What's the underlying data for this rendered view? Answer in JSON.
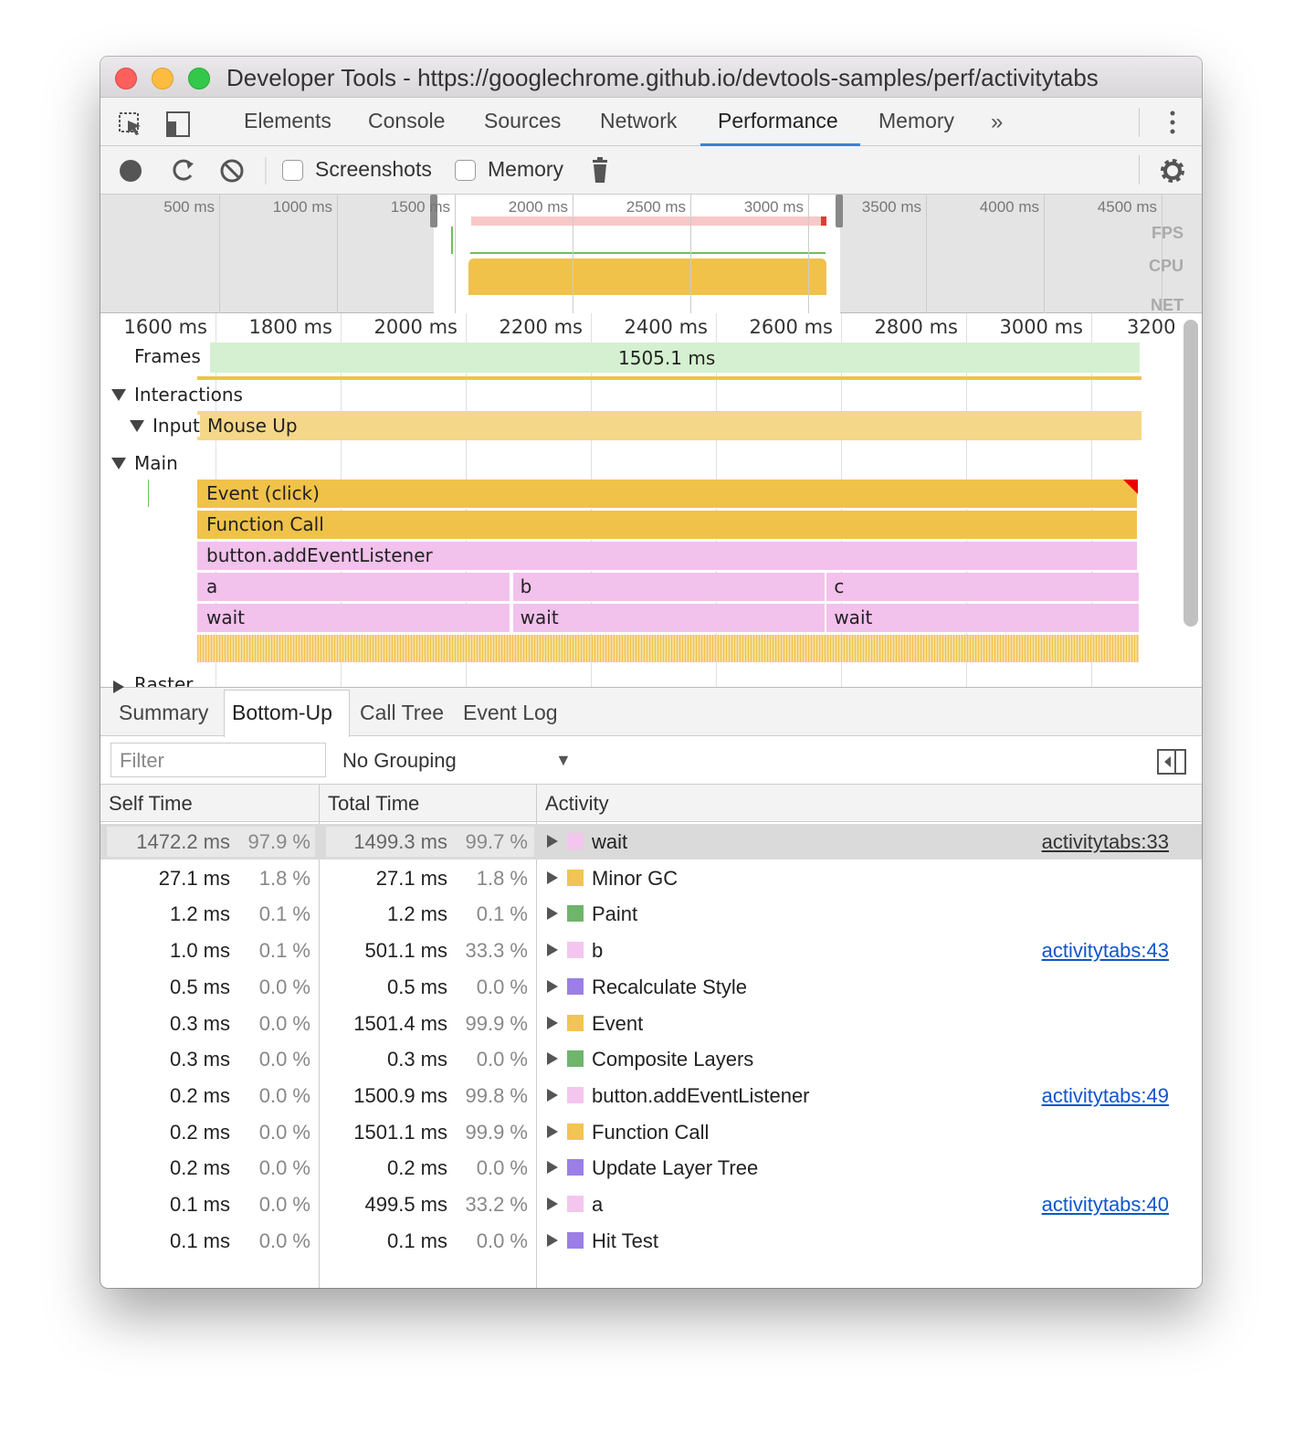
{
  "window": {
    "title": "Developer Tools - https://googlechrome.github.io/devtools-samples/perf/activitytabs"
  },
  "toolbar": {
    "tabs": [
      "Elements",
      "Console",
      "Sources",
      "Network",
      "Performance",
      "Memory"
    ],
    "active_tab": 4
  },
  "controls": {
    "checkboxes": [
      "Screenshots",
      "Memory"
    ]
  },
  "overview": {
    "ticks": [
      "500 ms",
      "1000 ms",
      "1500 ms",
      "2000 ms",
      "2500 ms",
      "3000 ms",
      "3500 ms",
      "4000 ms",
      "4500 ms"
    ],
    "tracks": [
      "FPS",
      "CPU",
      "NET"
    ]
  },
  "timeline": {
    "ticks": [
      "1600 ms",
      "1800 ms",
      "2000 ms",
      "2200 ms",
      "2400 ms",
      "2600 ms",
      "2800 ms",
      "3000 ms",
      "3200"
    ],
    "frames": {
      "label": "Frames",
      "duration": "1505.1 ms"
    },
    "interactions": "Interactions",
    "input": {
      "label": "Input",
      "event": "Mouse Up"
    },
    "main": "Main",
    "flame": [
      [
        "Event (click)"
      ],
      [
        "Function Call"
      ],
      [
        "button.addEventListener"
      ],
      [
        "a",
        "b",
        "c"
      ],
      [
        "wait",
        "wait",
        "wait"
      ]
    ],
    "flame_colors": [
      "#f0c24a",
      "#f0c24a",
      "#f2c1ec",
      "#f2c1ec",
      "#f2c1ec"
    ],
    "raster": "Raster"
  },
  "bottom_tabs": {
    "tabs": [
      "Summary",
      "Bottom-Up",
      "Call Tree",
      "Event Log"
    ],
    "active_tab": 1
  },
  "filter": {
    "placeholder": "Filter",
    "grouping": "No Grouping"
  },
  "table": {
    "headers": [
      "Self Time",
      "Total Time",
      "Activity"
    ],
    "rows": [
      {
        "self_time": "1472.2 ms",
        "self_pct": "97.9 %",
        "total_time": "1499.3 ms",
        "total_pct": "99.7 %",
        "activity": "wait",
        "color": "#f4c6ee",
        "link": "activitytabs:33"
      },
      {
        "self_time": "27.1 ms",
        "self_pct": "1.8 %",
        "total_time": "27.1 ms",
        "total_pct": "1.8 %",
        "activity": "Minor GC",
        "color": "#f1c453"
      },
      {
        "self_time": "1.2 ms",
        "self_pct": "0.1 %",
        "total_time": "1.2 ms",
        "total_pct": "0.1 %",
        "activity": "Paint",
        "color": "#6fb56b"
      },
      {
        "self_time": "1.0 ms",
        "self_pct": "0.1 %",
        "total_time": "501.1 ms",
        "total_pct": "33.3 %",
        "activity": "b",
        "color": "#f4c6ee",
        "link": "activitytabs:43"
      },
      {
        "self_time": "0.5 ms",
        "self_pct": "0.0 %",
        "total_time": "0.5 ms",
        "total_pct": "0.0 %",
        "activity": "Recalculate Style",
        "color": "#9b7fe6"
      },
      {
        "self_time": "0.3 ms",
        "self_pct": "0.0 %",
        "total_time": "1501.4 ms",
        "total_pct": "99.9 %",
        "activity": "Event",
        "color": "#f1c453"
      },
      {
        "self_time": "0.3 ms",
        "self_pct": "0.0 %",
        "total_time": "0.3 ms",
        "total_pct": "0.0 %",
        "activity": "Composite Layers",
        "color": "#6fb56b"
      },
      {
        "self_time": "0.2 ms",
        "self_pct": "0.0 %",
        "total_time": "1500.9 ms",
        "total_pct": "99.8 %",
        "activity": "button.addEventListener",
        "color": "#f4c6ee",
        "link": "activitytabs:49"
      },
      {
        "self_time": "0.2 ms",
        "self_pct": "0.0 %",
        "total_time": "1501.1 ms",
        "total_pct": "99.9 %",
        "activity": "Function Call",
        "color": "#f1c453"
      },
      {
        "self_time": "0.2 ms",
        "self_pct": "0.0 %",
        "total_time": "0.2 ms",
        "total_pct": "0.0 %",
        "activity": "Update Layer Tree",
        "color": "#9b7fe6"
      },
      {
        "self_time": "0.1 ms",
        "self_pct": "0.0 %",
        "total_time": "499.5 ms",
        "total_pct": "33.2 %",
        "activity": "a",
        "color": "#f4c6ee",
        "link": "activitytabs:40"
      },
      {
        "self_time": "0.1 ms",
        "self_pct": "0.0 %",
        "total_time": "0.1 ms",
        "total_pct": "0.0 %",
        "activity": "Hit Test",
        "color": "#9b7fe6"
      }
    ]
  }
}
